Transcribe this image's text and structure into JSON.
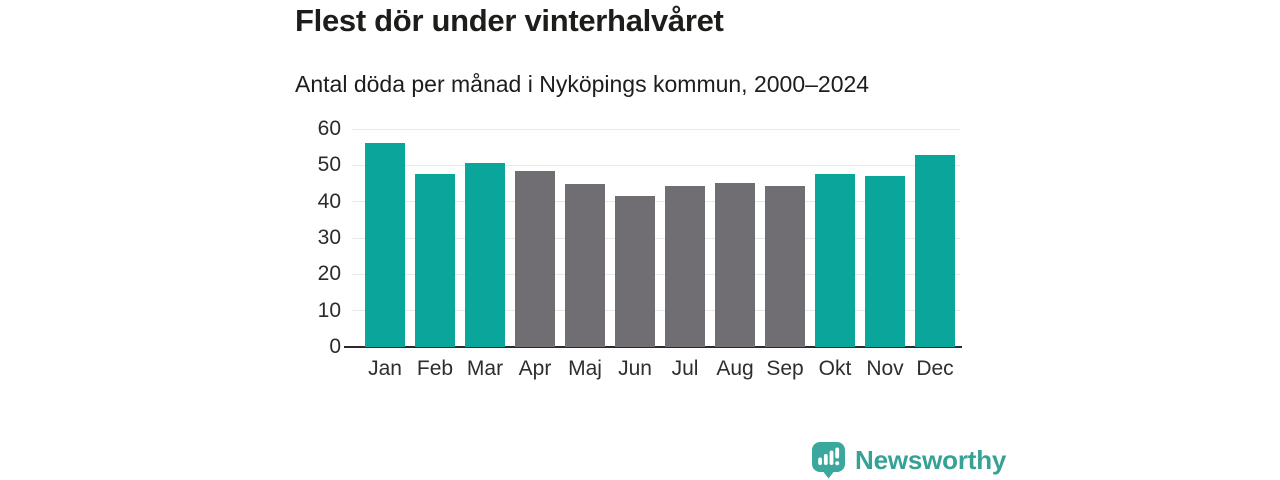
{
  "header": {
    "title": "Flest dör under vinterhalvåret",
    "subtitle": "Antal döda per månad i Nyköpings kommun, 2000–2024"
  },
  "chart_data": {
    "type": "bar",
    "categories": [
      "Jan",
      "Feb",
      "Mar",
      "Apr",
      "Maj",
      "Jun",
      "Jul",
      "Aug",
      "Sep",
      "Okt",
      "Nov",
      "Dec"
    ],
    "values": [
      56.2,
      47.7,
      50.6,
      48.5,
      45.0,
      41.7,
      44.3,
      45.2,
      44.3,
      47.7,
      47.0,
      52.9
    ],
    "bar_groups": [
      "winter",
      "winter",
      "winter",
      "summer",
      "summer",
      "summer",
      "summer",
      "summer",
      "summer",
      "winter",
      "winter",
      "winter"
    ],
    "group_colors": {
      "winter": "#0aa69b",
      "summer": "#706e72"
    },
    "title": "Flest dör under vinterhalvåret",
    "subtitle": "Antal döda per månad i Nyköpings kommun, 2000–2024",
    "xlabel": "",
    "ylabel": "",
    "ylim": [
      0,
      60
    ],
    "yticks": [
      0,
      10,
      20,
      30,
      40,
      50,
      60
    ],
    "grid": true,
    "legend": false,
    "gridline_color": "#e9e9e9",
    "axis_line_color": "#2b2b2b",
    "tick_text_color": "#2b2b2b"
  },
  "footer": {
    "brand": "Newsworthy",
    "brand_color": "#35a295"
  }
}
